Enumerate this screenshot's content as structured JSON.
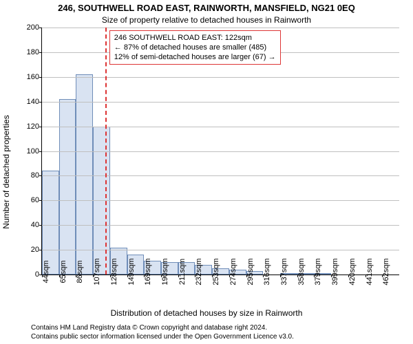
{
  "title": "246, SOUTHWELL ROAD EAST, RAINWORTH, MANSFIELD, NG21 0EQ",
  "subtitle": "Size of property relative to detached houses in Rainworth",
  "xlabel": "Distribution of detached houses by size in Rainworth",
  "ylabel": "Number of detached properties",
  "footer1": "Contains HM Land Registry data © Crown copyright and database right 2024.",
  "footer2": "Contains public sector information licensed under the Open Government Licence v3.0.",
  "chart": {
    "type": "histogram",
    "background_color": "#ffffff",
    "grid_color": "#bfbfbf",
    "axis_color": "#000000",
    "bar_fill": "#d9e3f2",
    "bar_border": "#6f8db8",
    "refline_color": "#d33",
    "callout_border": "#d33",
    "ylim": [
      0,
      200
    ],
    "ytick_step": 20,
    "yticks": [
      0,
      20,
      40,
      60,
      80,
      100,
      120,
      140,
      160,
      180,
      200
    ],
    "xticks": [
      "44sqm",
      "65sqm",
      "86sqm",
      "107sqm",
      "128sqm",
      "149sqm",
      "169sqm",
      "190sqm",
      "211sqm",
      "232sqm",
      "253sqm",
      "274sqm",
      "295sqm",
      "316sqm",
      "337sqm",
      "358sqm",
      "379sqm",
      "399sqm",
      "420sqm",
      "441sqm",
      "462sqm"
    ],
    "values": [
      84,
      142,
      162,
      120,
      22,
      16,
      11,
      10,
      10,
      8,
      5,
      4,
      3,
      0,
      1,
      1,
      1,
      0,
      0,
      0,
      0
    ],
    "bar_width_ratio": 1.0,
    "refline_x_sqm": 122,
    "x_min_sqm": 44,
    "x_bin_width_sqm": 21,
    "callout": {
      "line1": "246 SOUTHWELL ROAD EAST: 122sqm",
      "line2": "← 87% of detached houses are smaller (485)",
      "line3": "12% of semi-detached houses are larger (67) →"
    },
    "title_fontsize": 13,
    "subtitle_fontsize": 12,
    "axis_label_fontsize": 12,
    "tick_fontsize": 11,
    "callout_fontsize": 11,
    "footer_fontsize": 10
  }
}
